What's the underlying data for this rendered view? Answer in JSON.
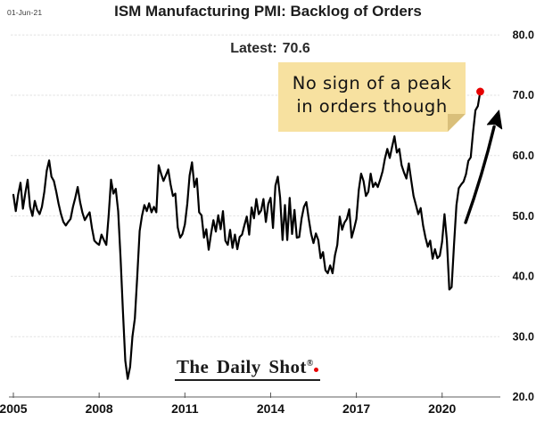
{
  "header": {
    "date": "01-Jun-21",
    "title": "ISM Manufacturing PMI: Backlog of Orders",
    "latest_label": "Latest:",
    "latest_value": "70.6"
  },
  "annotation": {
    "line1": "No sign of a peak",
    "line2": "in orders though"
  },
  "watermark": {
    "text": "The Daily Shot",
    "registered": "®"
  },
  "chart_data": {
    "type": "line",
    "title": "ISM Manufacturing PMI: Backlog of Orders",
    "latest": 70.6,
    "x_start_year": 2005,
    "x_step_months": 1,
    "x_axis": {
      "ticks": [
        2005,
        2008,
        2011,
        2014,
        2017,
        2020
      ],
      "tick_labels": [
        "2005",
        "2008",
        "2011",
        "2014",
        "2017",
        "2020"
      ]
    },
    "y_axis": {
      "ticks": [
        20,
        30,
        40,
        50,
        60,
        70,
        80
      ],
      "tick_labels": [
        "20.0",
        "30.0",
        "40.0",
        "50.0",
        "60.0",
        "70.0",
        "80.0"
      ],
      "range": [
        20,
        80
      ]
    },
    "grid": true,
    "legend": false,
    "colors": {
      "line": "#000000",
      "dot": "#e60000",
      "grid": "#e2e2e2",
      "axis": "#7f7f7f",
      "note_bg": "#f7e1a0",
      "note_fold": "#d9bf7a"
    },
    "series": [
      {
        "name": "ISM Manufacturing PMI Backlog of Orders (monthly, Jan 2005 - May 2021)",
        "values": [
          53.5,
          50.8,
          53.5,
          55.5,
          51.2,
          53.8,
          56.0,
          51.5,
          50.0,
          52.5,
          51.0,
          50.3,
          51.5,
          54.0,
          57.5,
          59.2,
          56.5,
          55.8,
          54.0,
          52.0,
          50.3,
          49.0,
          48.4,
          49.0,
          49.5,
          51.5,
          53.0,
          54.8,
          52.3,
          50.5,
          49.3,
          50.0,
          50.6,
          48.0,
          45.9,
          45.5,
          45.2,
          46.9,
          46.0,
          45.2,
          50.0,
          56.0,
          53.7,
          54.5,
          50.8,
          43.0,
          34.0,
          26.0,
          23.0,
          25.0,
          30.0,
          33.0,
          40.0,
          47.5,
          50.0,
          51.8,
          50.8,
          52.1,
          50.6,
          51.5,
          50.6,
          58.4,
          57.0,
          55.8,
          56.7,
          57.7,
          55.2,
          53.3,
          53.7,
          48.1,
          46.4,
          47.0,
          48.6,
          52.0,
          56.7,
          58.9,
          54.8,
          56.2,
          50.6,
          50.1,
          46.4,
          47.8,
          44.4,
          47.1,
          49.3,
          47.4,
          50.1,
          47.8,
          50.8,
          45.9,
          45.2,
          47.7,
          44.7,
          46.9,
          44.5,
          46.5,
          46.9,
          48.5,
          49.9,
          46.9,
          51.4,
          49.6,
          52.8,
          50.3,
          50.9,
          52.8,
          49.0,
          52.0,
          53.0,
          48.0,
          55.0,
          56.5,
          53.0,
          46.0,
          51.8,
          46.0,
          53.0,
          47.0,
          51.0,
          46.4,
          46.5,
          49.6,
          51.5,
          52.3,
          49.5,
          47.0,
          45.5,
          47.1,
          46.0,
          43.0,
          44.0,
          41.0,
          40.5,
          41.8,
          40.5,
          43.5,
          45.2,
          49.9,
          47.7,
          48.9,
          49.5,
          51.1,
          46.4,
          47.8,
          49.5,
          54.3,
          57.0,
          55.8,
          53.3,
          54.0,
          57.0,
          54.8,
          55.5,
          54.8,
          56.0,
          57.4,
          59.5,
          61.1,
          59.6,
          61.5,
          63.2,
          60.5,
          61.1,
          58.4,
          57.2,
          56.2,
          58.7,
          56.0,
          53.3,
          51.8,
          50.3,
          51.3,
          48.4,
          46.4,
          44.9,
          45.9,
          42.9,
          44.5,
          43.0,
          43.4,
          45.7,
          50.3,
          45.9,
          37.8,
          38.2,
          45.3,
          51.8,
          54.6,
          55.2,
          55.7,
          56.9,
          59.1,
          59.7,
          64.0,
          67.5,
          68.2,
          70.6
        ]
      }
    ],
    "annotations": {
      "sticky_note": {
        "text": "No sign of a peak in orders though"
      },
      "arrow": {
        "from": {
          "year": 2020.82,
          "value": 48.9
        },
        "to": {
          "year": 2021.82,
          "value": 64.8
        }
      },
      "latest_point": {
        "year": 2021.37,
        "value": 70.6
      }
    }
  }
}
